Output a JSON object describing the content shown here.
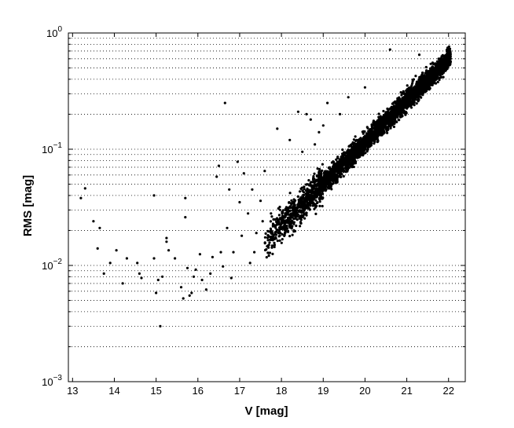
{
  "chart_data": {
    "type": "scatter",
    "title": "",
    "xlabel": "V [mag]",
    "ylabel": "RMS [mag]",
    "xlim": [
      12.9,
      22.4
    ],
    "ylim": [
      0.001,
      1
    ],
    "yscale": "log",
    "grid": "y-major-and-minor-dotted",
    "legend": "none",
    "marker_color": "#000000",
    "xticks": [
      13,
      14,
      15,
      16,
      17,
      18,
      19,
      20,
      21,
      22
    ],
    "xtick_labels": [
      "13",
      "14",
      "15",
      "16",
      "17",
      "18",
      "19",
      "20",
      "21",
      "22"
    ],
    "yticks": [
      0.001,
      0.01,
      0.1,
      1
    ],
    "ytick_labels": [
      {
        "base": "10",
        "exp": "−3"
      },
      {
        "base": "10",
        "exp": "−2"
      },
      {
        "base": "10",
        "exp": "−1"
      },
      {
        "base": "10",
        "exp": "0"
      }
    ],
    "points": [
      [
        13.2,
        0.038
      ],
      [
        13.3,
        0.046
      ],
      [
        13.5,
        0.024
      ],
      [
        13.65,
        0.021
      ],
      [
        13.6,
        0.014
      ],
      [
        13.75,
        0.0085
      ],
      [
        13.9,
        0.0105
      ],
      [
        14.05,
        0.0135
      ],
      [
        14.2,
        0.007
      ],
      [
        14.3,
        0.0115
      ],
      [
        14.55,
        0.0105
      ],
      [
        14.6,
        0.0085
      ],
      [
        14.65,
        0.0078
      ],
      [
        14.95,
        0.04
      ],
      [
        14.95,
        0.0115
      ],
      [
        15.0,
        0.0058
      ],
      [
        15.05,
        0.0075
      ],
      [
        15.1,
        0.003
      ],
      [
        15.15,
        0.008
      ],
      [
        15.25,
        0.016
      ],
      [
        15.25,
        0.0172
      ],
      [
        15.3,
        0.0135
      ],
      [
        15.45,
        0.0115
      ],
      [
        15.6,
        0.0065
      ],
      [
        15.65,
        0.0052
      ],
      [
        15.7,
        0.038
      ],
      [
        15.7,
        0.026
      ],
      [
        15.75,
        0.0095
      ],
      [
        15.8,
        0.0055
      ],
      [
        15.85,
        0.0058
      ],
      [
        15.9,
        0.008
      ],
      [
        15.95,
        0.0092
      ],
      [
        16.05,
        0.0125
      ],
      [
        16.1,
        0.0075
      ],
      [
        16.2,
        0.0062
      ],
      [
        16.3,
        0.0085
      ],
      [
        16.35,
        0.0118
      ],
      [
        16.45,
        0.058
      ],
      [
        16.5,
        0.072
      ],
      [
        16.55,
        0.013
      ],
      [
        16.6,
        0.0098
      ],
      [
        16.65,
        0.25
      ],
      [
        16.7,
        0.021
      ],
      [
        16.75,
        0.045
      ],
      [
        16.8,
        0.0078
      ],
      [
        16.85,
        0.013
      ],
      [
        16.95,
        0.078
      ],
      [
        17.0,
        0.035
      ],
      [
        17.05,
        0.018
      ],
      [
        17.1,
        0.062
      ],
      [
        17.2,
        0.028
      ],
      [
        17.25,
        0.0105
      ],
      [
        17.3,
        0.045
      ],
      [
        17.35,
        0.013
      ],
      [
        17.4,
        0.019
      ],
      [
        17.5,
        0.036
      ],
      [
        17.55,
        0.024
      ],
      [
        17.6,
        0.065
      ],
      [
        17.7,
        0.015
      ],
      [
        17.75,
        0.028
      ]
    ],
    "main_locus": {
      "v_min": 17.6,
      "v_max": 22.05,
      "rms_at_v18": 0.022,
      "rms_at_v22": 0.6,
      "scatter_dex": 0.08,
      "count": 3800,
      "upper_outliers": [
        [
          18.4,
          0.21
        ],
        [
          18.6,
          0.2
        ],
        [
          18.7,
          0.18
        ],
        [
          18.9,
          0.14
        ],
        [
          19.1,
          0.25
        ],
        [
          19.4,
          0.2
        ],
        [
          19.6,
          0.28
        ],
        [
          20.0,
          0.34
        ],
        [
          20.6,
          0.72
        ],
        [
          21.3,
          0.65
        ],
        [
          18.2,
          0.12
        ],
        [
          18.5,
          0.095
        ],
        [
          18.8,
          0.11
        ],
        [
          19.0,
          0.16
        ],
        [
          17.9,
          0.15
        ]
      ]
    }
  }
}
